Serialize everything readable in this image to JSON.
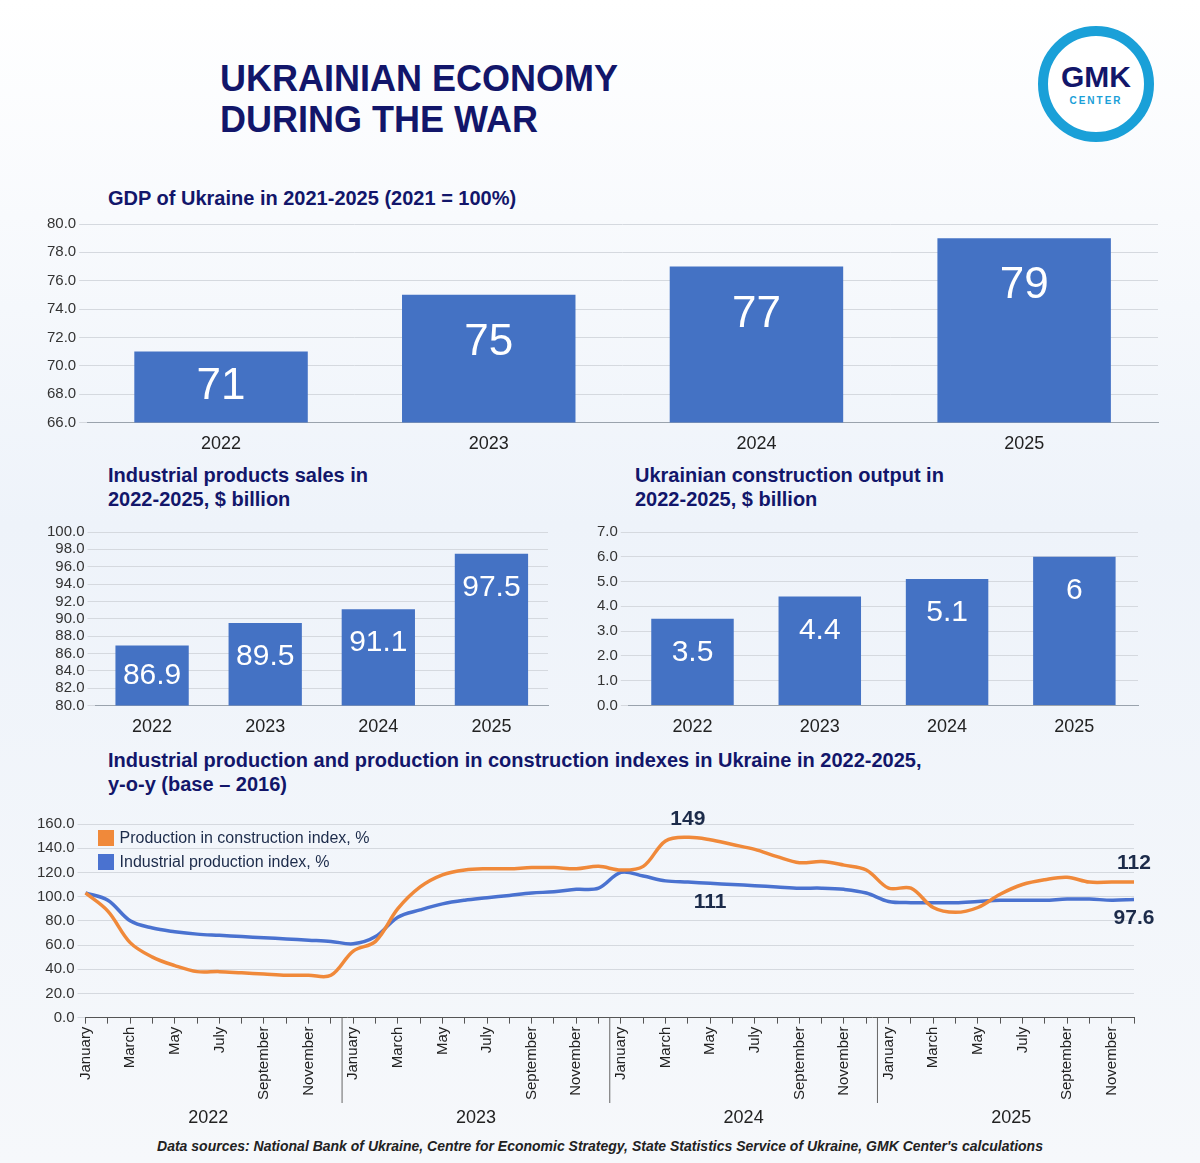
{
  "header": {
    "title": "UKRAINIAN ECONOMY DURING THE WAR",
    "logo": [
      "GMK",
      "CENTER"
    ]
  },
  "chart_data": [
    {
      "type": "bar",
      "title": "GDP of Ukraine in 2021-2025 (2021 = 100%)",
      "categories": [
        "2022",
        "2023",
        "2024",
        "2025"
      ],
      "values": [
        71,
        75,
        77,
        79
      ],
      "color": "#4472c4",
      "ylim": [
        66,
        80
      ],
      "yticks": [
        {
          "value": 66,
          "label": "66.0"
        },
        {
          "value": 68,
          "label": "68.0"
        },
        {
          "value": 70,
          "label": "70.0"
        },
        {
          "value": 72,
          "label": "72.0"
        },
        {
          "value": 74,
          "label": "74.0"
        },
        {
          "value": 76,
          "label": "76.0"
        },
        {
          "value": 78,
          "label": "78.0"
        },
        {
          "value": 80,
          "label": "80.0"
        }
      ],
      "grid": true,
      "data_labels": true
    },
    {
      "type": "bar",
      "title": "Industrial products sales in 2022-2025, $ billion",
      "categories": [
        "2022",
        "2023",
        "2024",
        "2025"
      ],
      "values": [
        86.9,
        89.5,
        91.1,
        97.5
      ],
      "color": "#4472c4",
      "ylim": [
        80,
        100
      ],
      "yticks": [
        {
          "value": 80,
          "label": "80.0"
        },
        {
          "value": 82,
          "label": "82.0"
        },
        {
          "value": 84,
          "label": "84.0"
        },
        {
          "value": 86,
          "label": "86.0"
        },
        {
          "value": 88,
          "label": "88.0"
        },
        {
          "value": 90,
          "label": "90.0"
        },
        {
          "value": 92,
          "label": "92.0"
        },
        {
          "value": 94,
          "label": "94.0"
        },
        {
          "value": 96,
          "label": "96.0"
        },
        {
          "value": 98,
          "label": "98.0"
        },
        {
          "value": 100,
          "label": "100.0"
        }
      ],
      "grid": true,
      "data_labels": true
    },
    {
      "type": "bar",
      "title": "Ukrainian construction output in 2022-2025, $ billion",
      "categories": [
        "2022",
        "2023",
        "2024",
        "2025"
      ],
      "values": [
        3.5,
        4.4,
        5.1,
        6
      ],
      "color": "#4472c4",
      "ylim": [
        0,
        7
      ],
      "yticks": [
        {
          "value": 0,
          "label": "0.0"
        },
        {
          "value": 1,
          "label": "1.0"
        },
        {
          "value": 2,
          "label": "2.0"
        },
        {
          "value": 3,
          "label": "3.0"
        },
        {
          "value": 4,
          "label": "4.0"
        },
        {
          "value": 5,
          "label": "5.0"
        },
        {
          "value": 6,
          "label": "6.0"
        },
        {
          "value": 7,
          "label": "7.0"
        }
      ],
      "grid": true,
      "data_labels": true
    },
    {
      "type": "line",
      "title": "Industrial production and production in construction indexes in Ukraine in 2022-2025, y-o-y (base – 2016)",
      "categories": [
        "January",
        null,
        "March",
        null,
        "May",
        null,
        "July",
        null,
        "September",
        null,
        "November",
        null,
        "January",
        null,
        "March",
        null,
        "May",
        null,
        "July",
        null,
        "September",
        null,
        "November",
        null,
        "January",
        null,
        "March",
        null,
        "May",
        null,
        "July",
        null,
        "September",
        null,
        "November",
        null,
        "January",
        null,
        "March",
        null,
        "May",
        null,
        "July",
        null,
        "September",
        null,
        "November",
        null
      ],
      "x_groups": [
        "2022",
        "2023",
        "2024",
        "2025"
      ],
      "series": [
        {
          "name": "Production in construction index, %",
          "color": "#f0893a",
          "values": [
            103,
            88,
            62,
            50,
            43,
            38,
            38,
            37,
            36,
            35,
            35,
            35,
            55,
            63,
            90,
            108,
            118,
            122,
            123,
            123,
            124,
            124,
            123,
            125,
            122,
            125,
            146,
            149,
            147,
            143,
            139,
            133,
            128,
            129,
            126,
            122,
            107,
            107,
            91,
            87,
            91,
            102,
            110,
            114,
            116,
            112,
            112,
            112
          ],
          "value_labels": [
            null,
            null,
            null,
            null,
            null,
            null,
            null,
            null,
            null,
            null,
            null,
            null,
            null,
            null,
            null,
            null,
            null,
            null,
            null,
            null,
            null,
            null,
            null,
            null,
            null,
            null,
            null,
            "149",
            null,
            null,
            null,
            null,
            null,
            null,
            null,
            null,
            null,
            null,
            null,
            null,
            null,
            null,
            null,
            null,
            null,
            null,
            null,
            "112"
          ]
        },
        {
          "name": "Industrial production index, %",
          "color": "#4a72d0",
          "values": [
            103,
            97,
            80,
            74,
            71,
            69,
            68,
            67,
            66,
            65,
            64,
            63,
            61,
            67,
            83,
            89,
            94,
            97,
            99,
            101,
            103,
            104,
            106,
            107,
            120,
            117,
            113,
            112,
            111,
            110,
            109,
            108,
            107,
            107,
            106,
            103,
            96,
            95,
            95,
            95,
            96,
            97,
            97,
            97,
            98,
            98,
            97,
            97.6
          ],
          "value_labels": [
            null,
            null,
            null,
            null,
            null,
            null,
            null,
            null,
            null,
            null,
            null,
            null,
            null,
            null,
            null,
            null,
            null,
            null,
            null,
            null,
            null,
            null,
            null,
            null,
            null,
            null,
            null,
            null,
            "111",
            null,
            null,
            null,
            null,
            null,
            null,
            null,
            null,
            null,
            null,
            null,
            null,
            null,
            null,
            null,
            null,
            null,
            null,
            "97.6"
          ]
        }
      ],
      "ylim": [
        0,
        160
      ],
      "yticks": [
        {
          "value": 0,
          "label": "0.0"
        },
        {
          "value": 20,
          "label": "20.0"
        },
        {
          "value": 40,
          "label": "40.0"
        },
        {
          "value": 60,
          "label": "60.0"
        },
        {
          "value": 80,
          "label": "80.0"
        },
        {
          "value": 100,
          "label": "100.0"
        },
        {
          "value": 120,
          "label": "120.0"
        },
        {
          "value": 140,
          "label": "140.0"
        },
        {
          "value": 160,
          "label": "160.0"
        }
      ],
      "grid": true,
      "legend": "top left",
      "marker": "none"
    }
  ],
  "footer": "Data sources: National Bank of Ukraine, Centre for Economic Strategy, State Statistics Service of Ukraine, GMK Center's calculations"
}
